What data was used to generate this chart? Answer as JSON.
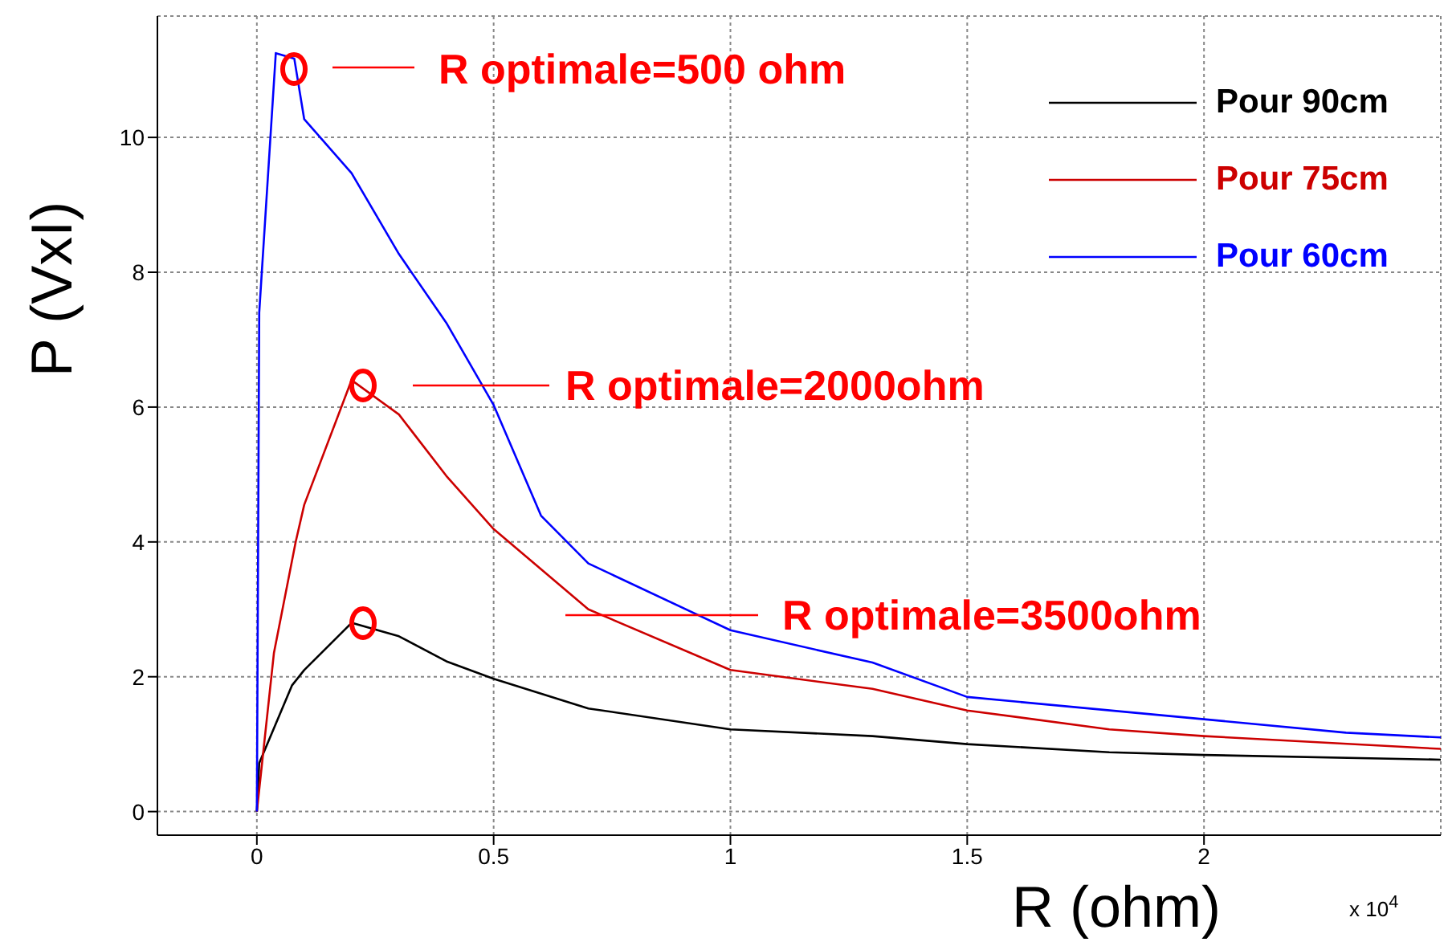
{
  "chart_data": {
    "type": "line",
    "xlabel": "R (ohm)",
    "ylabel": "P (VxI)",
    "xlim": [
      -0.21,
      2.5
    ],
    "xticks": [
      0,
      0.5,
      1,
      1.5,
      2
    ],
    "ylim": [
      -0.35,
      11.8
    ],
    "yticks": [
      0,
      2,
      4,
      6,
      8,
      10
    ],
    "grid": true,
    "legend": "top right",
    "marker": "none",
    "line_style": "solid",
    "series": [
      {
        "name": "Pour 90cm",
        "color": "#000000",
        "x": [
          0,
          0.005,
          0.074,
          0.1,
          0.2,
          0.3,
          0.4,
          0.5,
          0.7,
          1.0,
          1.3,
          1.5,
          1.8,
          2.0,
          2.5
        ],
        "values": [
          0,
          0.72,
          1.87,
          2.1,
          2.8,
          2.6,
          2.23,
          1.97,
          1.53,
          1.22,
          1.12,
          1.0,
          0.88,
          0.84,
          0.77
        ]
      },
      {
        "name": "Pour 75cm",
        "color": "#cc0000",
        "x": [
          0,
          0.036,
          0.082,
          0.1,
          0.2,
          0.3,
          0.4,
          0.5,
          0.7,
          1.0,
          1.3,
          1.5,
          1.8,
          2.0,
          2.5
        ],
        "values": [
          0,
          2.35,
          4.0,
          4.55,
          6.4,
          5.89,
          4.98,
          4.19,
          3.0,
          2.1,
          1.82,
          1.5,
          1.22,
          1.12,
          0.93
        ]
      },
      {
        "name": "Pour 60cm",
        "color": "#0000ff",
        "x": [
          0,
          0.005,
          0.04,
          0.079,
          0.1,
          0.2,
          0.3,
          0.4,
          0.5,
          0.6,
          0.7,
          1.0,
          1.3,
          1.5,
          2.0,
          2.3,
          2.5
        ],
        "values": [
          0,
          7.4,
          11.25,
          11.17,
          10.27,
          9.47,
          8.27,
          7.25,
          6.03,
          4.39,
          3.68,
          2.69,
          2.21,
          1.7,
          1.37,
          1.17,
          1.1
        ]
      }
    ],
    "annotations": [
      "R optimale=500 ohm",
      "R optimale=2000ohm",
      "R optimale=3500ohm",
      "x 10$^{4}$"
    ]
  }
}
